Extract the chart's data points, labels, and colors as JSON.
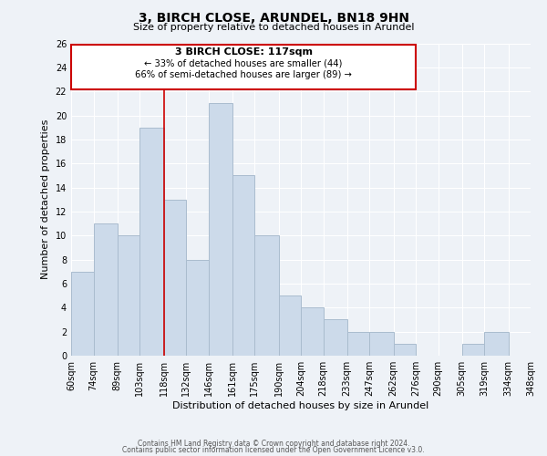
{
  "title1": "3, BIRCH CLOSE, ARUNDEL, BN18 9HN",
  "title2": "Size of property relative to detached houses in Arundel",
  "xlabel": "Distribution of detached houses by size in Arundel",
  "ylabel": "Number of detached properties",
  "bar_color": "#ccdaea",
  "bar_edge_color": "#aabcce",
  "bins": [
    60,
    74,
    89,
    103,
    118,
    132,
    146,
    161,
    175,
    190,
    204,
    218,
    233,
    247,
    262,
    276,
    290,
    305,
    319,
    334,
    348
  ],
  "counts": [
    7,
    11,
    10,
    19,
    13,
    8,
    21,
    15,
    10,
    5,
    4,
    3,
    2,
    2,
    1,
    0,
    0,
    1,
    2,
    0
  ],
  "tick_labels": [
    "60sqm",
    "74sqm",
    "89sqm",
    "103sqm",
    "118sqm",
    "132sqm",
    "146sqm",
    "161sqm",
    "175sqm",
    "190sqm",
    "204sqm",
    "218sqm",
    "233sqm",
    "247sqm",
    "262sqm",
    "276sqm",
    "290sqm",
    "305sqm",
    "319sqm",
    "334sqm",
    "348sqm"
  ],
  "ylim": [
    0,
    26
  ],
  "yticks": [
    0,
    2,
    4,
    6,
    8,
    10,
    12,
    14,
    16,
    18,
    20,
    22,
    24,
    26
  ],
  "property_line_x": 118,
  "annotation_title": "3 BIRCH CLOSE: 117sqm",
  "annotation_line1": "← 33% of detached houses are smaller (44)",
  "annotation_line2": "66% of semi-detached houses are larger (89) →",
  "annotation_box_color": "#ffffff",
  "annotation_box_edge": "#cc0000",
  "property_line_color": "#cc0000",
  "footer1": "Contains HM Land Registry data © Crown copyright and database right 2024.",
  "footer2": "Contains public sector information licensed under the Open Government Licence v3.0.",
  "background_color": "#eef2f7",
  "grid_color": "#ffffff",
  "title_fontsize": 10,
  "subtitle_fontsize": 8,
  "ylabel_fontsize": 8,
  "xlabel_fontsize": 8,
  "tick_fontsize": 7,
  "footer_fontsize": 5.5
}
